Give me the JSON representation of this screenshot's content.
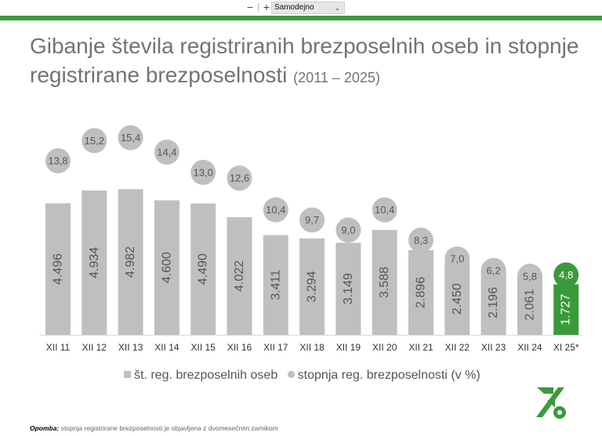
{
  "toolbar": {
    "zoom_out": "−",
    "zoom_in": "+",
    "zoom_select": "Samodejno"
  },
  "slide": {
    "title_main": "Gibanje števila registriranih brezposelnih oseb in stopnje registrirane brezposelnosti",
    "title_years": "(2011 – 2025)",
    "note_label": "Opomba:",
    "note_text": "stopnja registrirane brezposelnosti je objavljena z dvomesečnim zamikom",
    "accent_color": "#3a9a3a",
    "logo_icon": "zrsz-logo-icon"
  },
  "chart_data": {
    "type": "bar",
    "categories": [
      "XII 11",
      "XII 12",
      "XII 13",
      "XII 14",
      "XII 15",
      "XII 16",
      "XII 17",
      "XII 18",
      "XII 19",
      "XII 20",
      "XII 21",
      "XII 22",
      "XII 23",
      "XII 24",
      "XI 25*"
    ],
    "series": [
      {
        "name": "št. reg. brezposelnih oseb",
        "type": "bar",
        "values": [
          4496,
          4934,
          4982,
          4600,
          4490,
          4022,
          3411,
          3294,
          3149,
          3588,
          2896,
          2450,
          2196,
          2061,
          1727
        ],
        "labels": [
          "4.496",
          "4.934",
          "4.982",
          "4.600",
          "4.490",
          "4.022",
          "3.411",
          "3.294",
          "3.149",
          "3.588",
          "2.896",
          "2.450",
          "2.196",
          "2.061",
          "1.727"
        ]
      },
      {
        "name": "stopnja reg. brezposelnosti (v %)",
        "type": "circle-marker",
        "values": [
          13.8,
          15.2,
          15.4,
          14.4,
          13.0,
          12.6,
          10.4,
          9.7,
          9.0,
          10.4,
          8.3,
          7.0,
          6.2,
          5.8,
          4.8
        ],
        "labels": [
          "13,8",
          "15,2",
          "15,4",
          "14,4",
          "13,0",
          "12,6",
          "10,4",
          "9,7",
          "9,0",
          "10,4",
          "8,3",
          "7,0",
          "6,2",
          "5,8",
          "4,8"
        ]
      }
    ],
    "highlight_index": 14,
    "bar_color": "#bfbfbf",
    "highlight_color": "#3a9a3a",
    "legend_position": "bottom",
    "grid": false
  }
}
